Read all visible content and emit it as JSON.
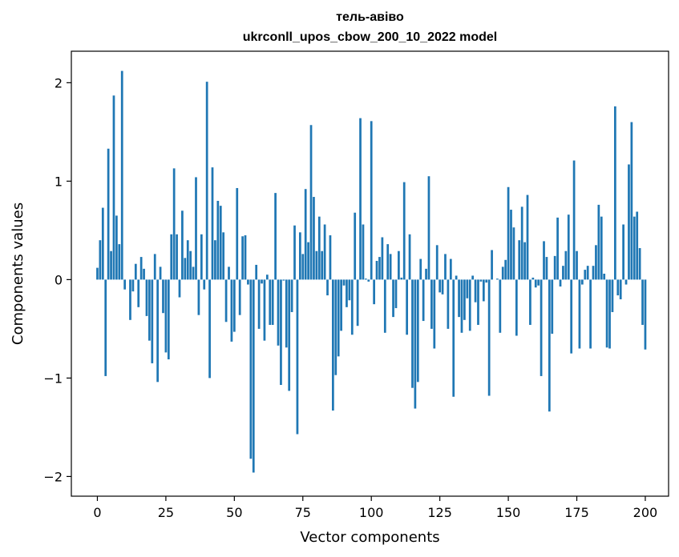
{
  "chart_data": {
    "type": "bar",
    "title_line1": "тель-авіво",
    "title_line2": "ukrconll_upos_cbow_200_10_2022 model",
    "xlabel": "Vector components",
    "ylabel": "Components values",
    "xlim": [
      -9.5,
      208.5
    ],
    "ylim": [
      -2.2,
      2.32
    ],
    "xticks": [
      0,
      25,
      50,
      75,
      100,
      125,
      150,
      175,
      200
    ],
    "yticks": [
      -2,
      -1,
      0,
      1,
      2
    ],
    "ytick_labels": [
      "−2",
      "−1",
      "0",
      "1",
      "2"
    ],
    "grid": false,
    "bar_color": "#1f77b4",
    "values": [
      0.12,
      0.4,
      0.73,
      -0.98,
      1.33,
      0.29,
      1.87,
      0.65,
      0.36,
      2.12,
      -0.1,
      0.0,
      -0.41,
      -0.12,
      0.16,
      -0.28,
      0.23,
      0.11,
      -0.37,
      -0.62,
      -0.85,
      0.26,
      -1.04,
      0.13,
      -0.34,
      -0.74,
      -0.81,
      0.46,
      1.13,
      0.46,
      -0.18,
      0.7,
      0.22,
      0.4,
      0.29,
      0.13,
      1.04,
      -0.36,
      0.46,
      -0.1,
      2.01,
      -1.0,
      1.14,
      0.4,
      0.8,
      0.75,
      0.48,
      -0.43,
      0.13,
      -0.63,
      -0.53,
      0.93,
      -0.36,
      0.44,
      0.45,
      -0.05,
      -1.82,
      -1.96,
      0.15,
      -0.5,
      -0.04,
      -0.62,
      0.05,
      -0.46,
      -0.46,
      0.88,
      -0.67,
      -1.07,
      -0.01,
      -0.69,
      -1.13,
      -0.33,
      0.55,
      -1.57,
      0.48,
      0.26,
      0.92,
      0.38,
      1.57,
      0.84,
      0.29,
      0.64,
      0.29,
      0.56,
      -0.16,
      0.45,
      -1.33,
      -0.97,
      -0.78,
      -0.52,
      -0.06,
      -0.28,
      -0.21,
      -0.56,
      0.68,
      -0.47,
      1.64,
      0.56,
      0.01,
      -0.02,
      1.61,
      -0.25,
      0.19,
      0.23,
      0.43,
      -0.54,
      0.36,
      0.26,
      -0.38,
      -0.29,
      0.29,
      0.02,
      0.99,
      -0.56,
      0.46,
      -1.1,
      -1.31,
      -1.04,
      0.21,
      -0.42,
      0.11,
      1.05,
      -0.5,
      -0.7,
      0.35,
      -0.13,
      -0.15,
      0.26,
      -0.5,
      0.21,
      -1.19,
      0.04,
      -0.38,
      -0.54,
      -0.41,
      -0.19,
      -0.52,
      0.04,
      -0.23,
      -0.46,
      -0.02,
      -0.22,
      -0.03,
      -1.18,
      0.3,
      0.0,
      0.01,
      -0.54,
      0.13,
      0.2,
      0.94,
      0.71,
      0.53,
      -0.57,
      0.4,
      0.74,
      0.38,
      0.86,
      -0.46,
      0.02,
      -0.08,
      -0.06,
      -0.98,
      0.39,
      0.23,
      -1.34,
      -0.55,
      0.24,
      0.63,
      -0.07,
      0.14,
      0.29,
      0.66,
      -0.75,
      1.21,
      0.29,
      -0.7,
      -0.05,
      0.1,
      0.14,
      -0.7,
      0.14,
      0.35,
      0.76,
      0.64,
      0.06,
      -0.69,
      -0.7,
      -0.33,
      1.76,
      -0.16,
      -0.2,
      0.56,
      -0.05,
      1.17,
      1.6,
      0.64,
      0.69,
      0.32,
      -0.46,
      -0.71
    ]
  }
}
